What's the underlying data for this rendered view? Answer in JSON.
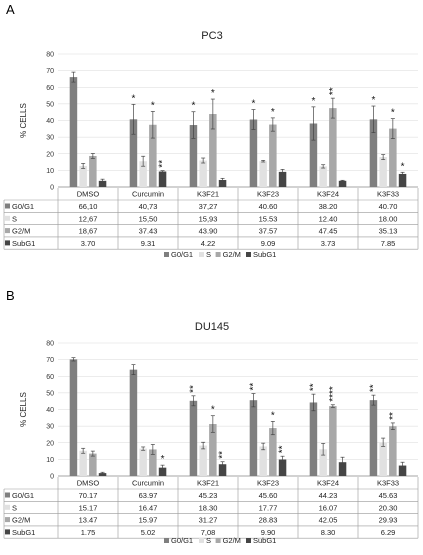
{
  "chart_data": [
    {
      "type": "bar",
      "panel_label": "A",
      "title": "PC3",
      "ylabel": "% CELLS",
      "ylim": [
        0,
        80
      ],
      "yticks": [
        0,
        10,
        20,
        30,
        40,
        50,
        60,
        70,
        80
      ],
      "grid": true,
      "legend_position": "bottom",
      "categories": [
        "DMSO",
        "Curcumin",
        "K3F21",
        "K3F23",
        "K3F24",
        "K3F33"
      ],
      "series": [
        {
          "name": "G0/G1",
          "color": "#7f7f7f",
          "values": [
            66.1,
            40.73,
            37.27,
            40.6,
            38.2,
            40.7
          ],
          "errors": [
            3,
            9,
            8,
            6,
            10,
            8
          ],
          "stars": [
            "",
            "*",
            "*",
            "*",
            "*",
            "*"
          ],
          "table_values": [
            "66,10",
            "40,73",
            "37,27",
            "40.60",
            "38.20",
            "40.70"
          ]
        },
        {
          "name": "S",
          "color": "#e1e1e1",
          "values": [
            12.67,
            15.5,
            15.93,
            15.53,
            12.4,
            18.0
          ],
          "errors": [
            1.5,
            3,
            1.5,
            0.5,
            1,
            1.5
          ],
          "stars": [
            "",
            "",
            "",
            "",
            "",
            ""
          ],
          "table_values": [
            "12,67",
            "15,50",
            "15,93",
            "15.53",
            "12.40",
            "18.00"
          ]
        },
        {
          "name": "G2/M",
          "color": "#a8a8a8",
          "values": [
            18.67,
            37.43,
            43.9,
            37.57,
            47.45,
            35.13
          ],
          "errors": [
            1.5,
            8,
            9,
            4,
            6,
            6
          ],
          "stars": [
            "",
            "*",
            "*",
            "*",
            "**",
            "*"
          ],
          "table_values": [
            "18,67",
            "37.43",
            "43.90",
            "37.57",
            "47.45",
            "35.13"
          ]
        },
        {
          "name": "SubG1",
          "color": "#454545",
          "values": [
            3.7,
            9.31,
            4.22,
            9.09,
            3.73,
            7.85
          ],
          "errors": [
            1,
            0.5,
            1,
            1.5,
            0.3,
            1
          ],
          "stars": [
            "",
            "**",
            "",
            "",
            "",
            "*"
          ],
          "table_values": [
            "3.70",
            "9.31",
            "4.22",
            "9.09",
            "3.73",
            "7.85"
          ]
        }
      ]
    },
    {
      "type": "bar",
      "panel_label": "B",
      "title": "DU145",
      "ylabel": "% CELLS",
      "ylim": [
        0,
        80
      ],
      "yticks": [
        0,
        10,
        20,
        30,
        40,
        50,
        60,
        70,
        80
      ],
      "grid": true,
      "legend_position": "bottom",
      "categories": [
        "DMSO",
        "Curcumin",
        "K3F21",
        "K3F23",
        "K3F24",
        "K3F33"
      ],
      "series": [
        {
          "name": "G0/G1",
          "color": "#7f7f7f",
          "values": [
            70.17,
            63.97,
            45.23,
            45.6,
            44.23,
            45.63
          ],
          "errors": [
            1,
            3,
            3,
            4,
            5,
            3
          ],
          "stars": [
            "",
            "",
            "**",
            "**",
            "**",
            "**"
          ],
          "table_values": [
            "70.17",
            "63.97",
            "45.23",
            "45.60",
            "44.23",
            "45.63"
          ]
        },
        {
          "name": "S",
          "color": "#e1e1e1",
          "values": [
            15.17,
            16.47,
            18.3,
            17.77,
            16.07,
            20.3
          ],
          "errors": [
            1.5,
            1,
            2,
            2,
            3.5,
            2.5
          ],
          "stars": [
            "",
            "",
            "",
            "",
            "",
            ""
          ],
          "table_values": [
            "15.17",
            "16.47",
            "18.30",
            "17.77",
            "16.07",
            "20.30"
          ]
        },
        {
          "name": "G2/M",
          "color": "#a8a8a8",
          "values": [
            13.47,
            15.97,
            31.27,
            28.83,
            42.05,
            29.93
          ],
          "errors": [
            1.5,
            3,
            5,
            4,
            0.8,
            2
          ],
          "stars": [
            "",
            "",
            "*",
            "*",
            "****",
            "**"
          ],
          "table_values": [
            "13.47",
            "15.97",
            "31.27",
            "28.83",
            "42.05",
            "29.93"
          ]
        },
        {
          "name": "SubG1",
          "color": "#454545",
          "values": [
            1.75,
            5.02,
            7.08,
            9.9,
            8.3,
            6.29
          ],
          "errors": [
            0.5,
            1.5,
            1.5,
            2,
            3,
            2
          ],
          "stars": [
            "",
            "*",
            "**",
            "**",
            "",
            ""
          ],
          "table_values": [
            "1.75",
            "5.02",
            "7,08",
            "9.90",
            "8.30",
            "6.29"
          ]
        }
      ]
    }
  ]
}
